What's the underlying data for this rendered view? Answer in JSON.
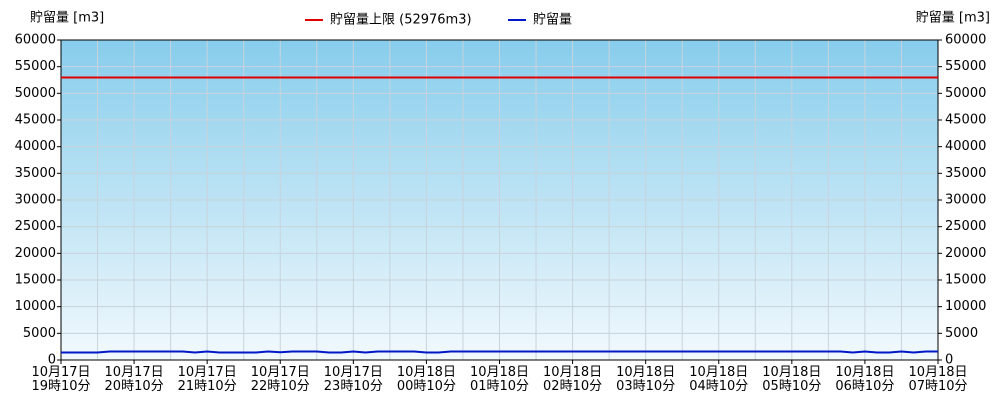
{
  "chart_data": {
    "type": "line",
    "y_label": "貯留量 [m3]",
    "y2_label": "貯留量 [m3]",
    "limit": {
      "name": "貯留量上限 (52976m3)",
      "color": "#e00000",
      "value": 52976
    },
    "categories": [
      "10月17日 19時10分",
      null,
      null,
      null,
      null,
      null,
      "10月17日 20時10分",
      null,
      null,
      null,
      null,
      null,
      "10月17日 21時10分",
      null,
      null,
      null,
      null,
      null,
      "10月17日 22時10分",
      null,
      null,
      null,
      null,
      null,
      "10月17日 23時10分",
      null,
      null,
      null,
      null,
      null,
      "10月18日 00時10分",
      null,
      null,
      null,
      null,
      null,
      "10月18日 01時10分",
      null,
      null,
      null,
      null,
      null,
      "10月18日 02時10分",
      null,
      null,
      null,
      null,
      null,
      "10月18日 03時10分",
      null,
      null,
      null,
      null,
      null,
      "10月18日 04時10分",
      null,
      null,
      null,
      null,
      null,
      "10月18日 05時10分",
      null,
      null,
      null,
      null,
      null,
      "10月18日 06時10分",
      null,
      null,
      null,
      null,
      null,
      "10月18日 07時10分"
    ],
    "series": [
      {
        "name": "貯留量",
        "color": "#0018c8",
        "values": [
          1400,
          1400,
          1400,
          1400,
          1600,
          1600,
          1600,
          1600,
          1600,
          1600,
          1600,
          1400,
          1600,
          1400,
          1400,
          1400,
          1400,
          1600,
          1450,
          1600,
          1600,
          1600,
          1400,
          1400,
          1600,
          1400,
          1600,
          1600,
          1600,
          1600,
          1400,
          1400,
          1600,
          1600,
          1600,
          1600,
          1600,
          1600,
          1600,
          1600,
          1600,
          1600,
          1600,
          1600,
          1600,
          1600,
          1600,
          1600,
          1600,
          1600,
          1600,
          1600,
          1600,
          1600,
          1600,
          1600,
          1600,
          1600,
          1600,
          1600,
          1600,
          1600,
          1600,
          1600,
          1600,
          1400,
          1600,
          1400,
          1400,
          1600,
          1400,
          1600,
          1600
        ]
      }
    ],
    "ylim": [
      0,
      60000
    ],
    "yticks": [
      0,
      5000,
      10000,
      15000,
      20000,
      25000,
      30000,
      35000,
      40000,
      45000,
      50000,
      55000,
      60000
    ],
    "y2lim": [
      0,
      60000
    ],
    "y2ticks": [
      0,
      5000,
      10000,
      15000,
      20000,
      25000,
      30000,
      35000,
      40000,
      45000,
      50000,
      55000,
      60000
    ],
    "grid": true
  }
}
